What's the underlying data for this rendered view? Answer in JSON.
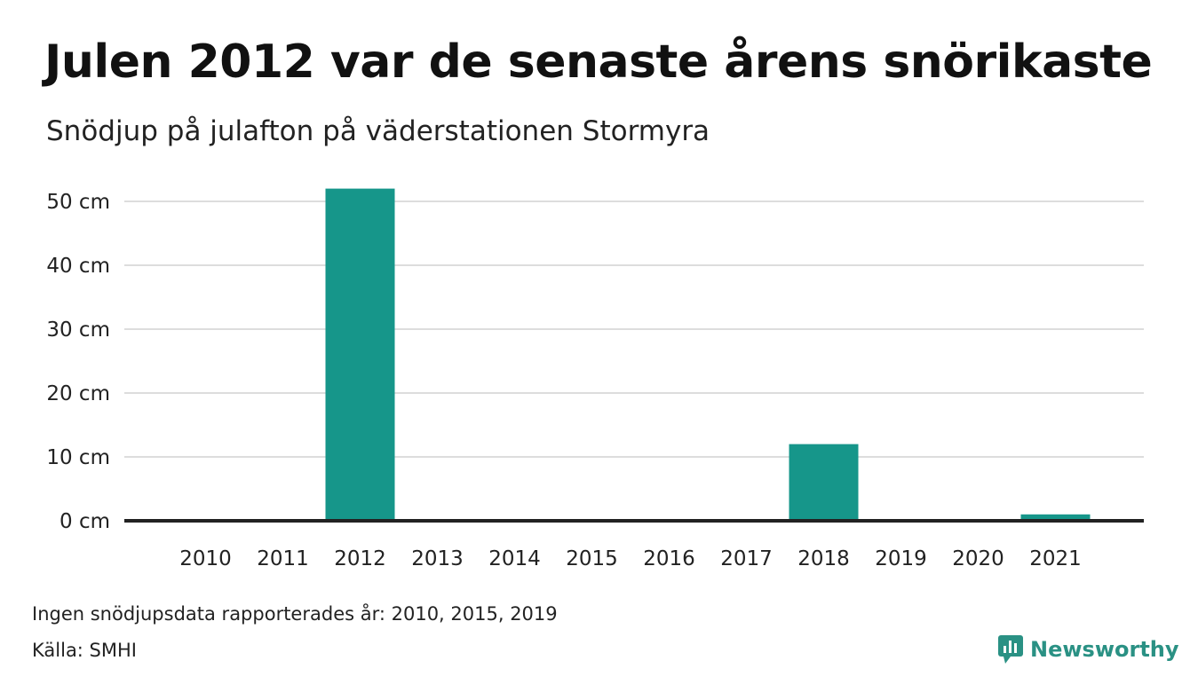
{
  "colors": {
    "bar": "#16968a",
    "grid": "#dddddd",
    "axis": "#222222",
    "brand": "#2a9184"
  },
  "footer": {
    "note": "Ingen snödjupsdata rapporterades år: 2010, 2015, 2019",
    "source": "Källa: SMHI",
    "brand": "Newsworthy",
    "brand_icon": "newsworthy-logo-icon"
  },
  "chart_data": {
    "type": "bar",
    "title": "Julen 2012 var de senaste årens snörikaste",
    "subtitle": "Snödjup på julafton på väderstationen Stormyra",
    "xlabel": "",
    "ylabel": "",
    "categories": [
      "2010",
      "2011",
      "2012",
      "2013",
      "2014",
      "2015",
      "2016",
      "2017",
      "2018",
      "2019",
      "2020",
      "2021"
    ],
    "values": [
      null,
      0,
      52,
      0,
      0,
      null,
      0,
      0,
      12,
      null,
      0,
      1
    ],
    "ylim": [
      0,
      50
    ],
    "yticks": [
      0,
      10,
      20,
      30,
      40,
      50
    ],
    "ytick_labels": [
      "0 cm",
      "10 cm",
      "20 cm",
      "30 cm",
      "40 cm",
      "50 cm"
    ],
    "grid": true,
    "legend": "none"
  }
}
